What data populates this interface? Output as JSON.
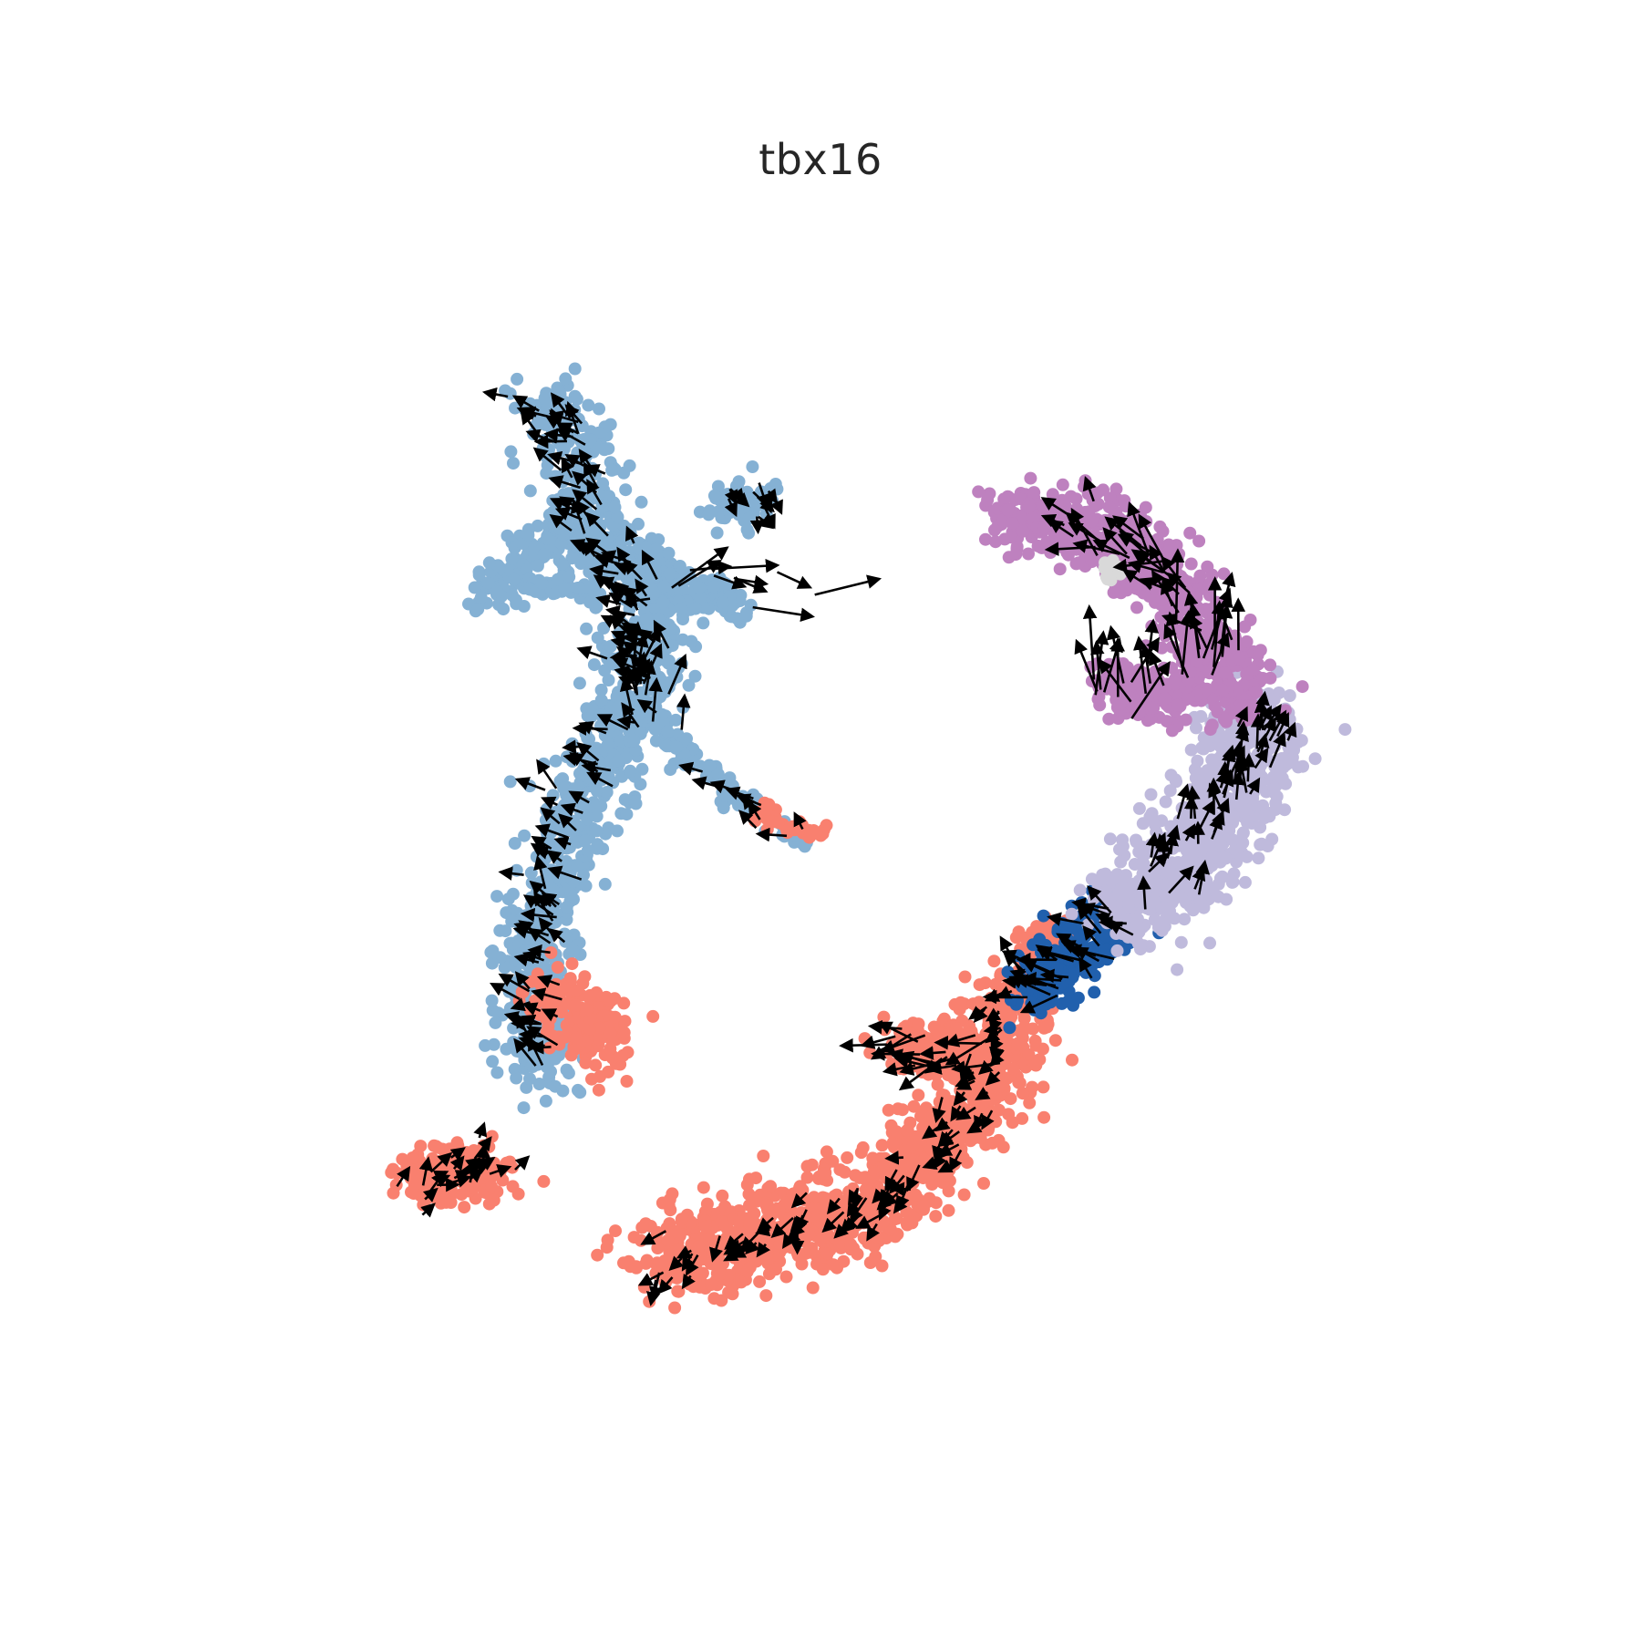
{
  "chart_data": {
    "type": "scatter",
    "title": "tbx16",
    "xlabel": "",
    "ylabel": "",
    "xlim": [
      0,
      1
    ],
    "ylim": [
      0,
      1
    ],
    "axes_visible": false,
    "grid": false,
    "legend": "none",
    "overlay": "velocity-arrows",
    "colors": {
      "light_blue": "#85b1d4",
      "salmon": "#f9806f",
      "purple": "#be81bf",
      "lavender": "#bfbadc",
      "dark_blue": "#2160ad",
      "gray": "#d9d9d9",
      "arrow": "#000000"
    },
    "series": [
      {
        "color": "#85b1d4",
        "clusters": [
          {
            "path": [
              [
                0.265,
                0.839
              ],
              [
                0.29,
                0.837
              ],
              [
                0.3,
                0.812
              ],
              [
                0.305,
                0.776
              ],
              [
                0.312,
                0.745
              ],
              [
                0.33,
                0.72
              ],
              [
                0.35,
                0.7
              ],
              [
                0.36,
                0.668
              ],
              [
                0.35,
                0.62
              ],
              [
                0.335,
                0.595
              ],
              [
                0.325,
                0.56
              ],
              [
                0.3,
                0.535
              ],
              [
                0.287,
                0.5
              ],
              [
                0.282,
                0.465
              ],
              [
                0.268,
                0.43
              ],
              [
                0.26,
                0.39
              ],
              [
                0.265,
                0.35
              ],
              [
                0.275,
                0.32
              ]
            ],
            "spread": 0.016,
            "n": 1100
          },
          {
            "path": [
              [
                0.3,
                0.745
              ],
              [
                0.27,
                0.732
              ],
              [
                0.245,
                0.712
              ],
              [
                0.222,
                0.693
              ]
            ],
            "spread": 0.009,
            "n": 160
          },
          {
            "path": [
              [
                0.257,
                0.7
              ],
              [
                0.285,
                0.703
              ],
              [
                0.31,
                0.7
              ]
            ],
            "spread": 0.004,
            "n": 50
          },
          {
            "path": [
              [
                0.34,
                0.715
              ],
              [
                0.375,
                0.705
              ],
              [
                0.41,
                0.695
              ],
              [
                0.43,
                0.69
              ]
            ],
            "spread": 0.009,
            "n": 180
          },
          {
            "path": [
              [
                0.35,
                0.605
              ],
              [
                0.385,
                0.572
              ],
              [
                0.42,
                0.545
              ],
              [
                0.455,
                0.52
              ],
              [
                0.48,
                0.505
              ]
            ],
            "spread": 0.005,
            "n": 120
          },
          {
            "path": [
              [
                0.415,
                0.773
              ],
              [
                0.45,
                0.762
              ]
            ],
            "spread": 0.01,
            "n": 70
          }
        ]
      },
      {
        "color": "#f9806f",
        "clusters": [
          {
            "path": [
              [
                0.28,
                0.375
              ],
              [
                0.31,
                0.36
              ],
              [
                0.315,
                0.335
              ]
            ],
            "spread": 0.014,
            "n": 180
          },
          {
            "path": [
              [
                0.16,
                0.23
              ],
              [
                0.195,
                0.24
              ],
              [
                0.235,
                0.24
              ]
            ],
            "spread": 0.012,
            "n": 160
          },
          {
            "path": [
              [
                0.36,
                0.17
              ],
              [
                0.42,
                0.186
              ],
              [
                0.48,
                0.2
              ],
              [
                0.54,
                0.215
              ],
              [
                0.585,
                0.25
              ],
              [
                0.62,
                0.3
              ],
              [
                0.64,
                0.34
              ],
              [
                0.66,
                0.385
              ]
            ],
            "spread": 0.018,
            "n": 1100
          },
          {
            "path": [
              [
                0.555,
                0.34
              ],
              [
                0.6,
                0.337
              ],
              [
                0.64,
                0.33
              ]
            ],
            "spread": 0.01,
            "n": 160
          },
          {
            "path": [
              [
                0.445,
                0.527
              ],
              [
                0.47,
                0.513
              ],
              [
                0.495,
                0.505
              ]
            ],
            "spread": 0.004,
            "n": 45
          },
          {
            "path": [
              [
                0.665,
                0.42
              ],
              [
                0.7,
                0.435
              ]
            ],
            "spread": 0.008,
            "n": 60
          }
        ]
      },
      {
        "color": "#2160ad",
        "clusters": [
          {
            "path": [
              [
                0.67,
                0.38
              ],
              [
                0.69,
                0.4
              ],
              [
                0.715,
                0.425
              ],
              [
                0.74,
                0.44
              ]
            ],
            "spread": 0.013,
            "n": 240
          }
        ]
      },
      {
        "color": "#bfbadc",
        "clusters": [
          {
            "path": [
              [
                0.74,
                0.445
              ],
              [
                0.775,
                0.47
              ],
              [
                0.8,
                0.495
              ],
              [
                0.825,
                0.53
              ],
              [
                0.845,
                0.57
              ],
              [
                0.855,
                0.605
              ]
            ],
            "spread": 0.02,
            "n": 800
          }
        ]
      },
      {
        "color": "#be81bf",
        "clusters": [
          {
            "path": [
              [
                0.65,
                0.755
              ],
              [
                0.7,
                0.755
              ],
              [
                0.745,
                0.735
              ],
              [
                0.78,
                0.705
              ],
              [
                0.8,
                0.675
              ],
              [
                0.825,
                0.64
              ],
              [
                0.845,
                0.615
              ]
            ],
            "spread": 0.014,
            "n": 700
          },
          {
            "path": [
              [
                0.73,
                0.625
              ],
              [
                0.77,
                0.615
              ],
              [
                0.805,
                0.62
              ]
            ],
            "spread": 0.012,
            "n": 220
          }
        ]
      },
      {
        "color": "#d9d9d9",
        "clusters": [
          {
            "path": [
              [
                0.725,
                0.716
              ],
              [
                0.735,
                0.712
              ]
            ],
            "spread": 0.004,
            "n": 14
          }
        ]
      }
    ],
    "arrow_regions": [
      {
        "path": [
          [
            0.265,
            0.839
          ],
          [
            0.3,
            0.812
          ],
          [
            0.312,
            0.745
          ],
          [
            0.35,
            0.7
          ],
          [
            0.335,
            0.595
          ],
          [
            0.3,
            0.535
          ],
          [
            0.282,
            0.465
          ],
          [
            0.26,
            0.39
          ],
          [
            0.275,
            0.32
          ]
        ],
        "dir": [
          -0.75,
          0.45
        ],
        "len": 0.02,
        "n": 140
      },
      {
        "path": [
          [
            0.39,
            0.705
          ],
          [
            0.44,
            0.712
          ],
          [
            0.48,
            0.705
          ]
        ],
        "dir": [
          1.0,
          0.18
        ],
        "len": 0.04,
        "n": 10
      },
      {
        "path": [
          [
            0.345,
            0.635
          ],
          [
            0.36,
            0.6
          ]
        ],
        "dir": [
          0.05,
          1.0
        ],
        "len": 0.026,
        "n": 14
      },
      {
        "path": [
          [
            0.42,
            0.545
          ],
          [
            0.48,
            0.505
          ]
        ],
        "dir": [
          -0.85,
          0.5
        ],
        "len": 0.018,
        "n": 10
      },
      {
        "path": [
          [
            0.42,
            0.78
          ],
          [
            0.46,
            0.77
          ]
        ],
        "dir": [
          0.55,
          -0.8
        ],
        "len": 0.016,
        "n": 12
      },
      {
        "path": [
          [
            0.16,
            0.23
          ],
          [
            0.235,
            0.245
          ]
        ],
        "dir": [
          0.7,
          0.6
        ],
        "len": 0.016,
        "n": 24
      },
      {
        "path": [
          [
            0.36,
            0.165
          ],
          [
            0.48,
            0.2
          ],
          [
            0.545,
            0.215
          ],
          [
            0.6,
            0.26
          ],
          [
            0.62,
            0.3
          ],
          [
            0.65,
            0.38
          ]
        ],
        "dir": [
          -0.7,
          -0.7
        ],
        "len": 0.016,
        "n": 90
      },
      {
        "path": [
          [
            0.555,
            0.34
          ],
          [
            0.64,
            0.33
          ]
        ],
        "dir": [
          -1.0,
          0.0
        ],
        "len": 0.03,
        "n": 20
      },
      {
        "path": [
          [
            0.67,
            0.38
          ],
          [
            0.7,
            0.405
          ],
          [
            0.74,
            0.44
          ]
        ],
        "dir": [
          -0.9,
          0.4
        ],
        "len": 0.03,
        "n": 30
      },
      {
        "path": [
          [
            0.75,
            0.46
          ],
          [
            0.8,
            0.5
          ],
          [
            0.84,
            0.56
          ],
          [
            0.86,
            0.6
          ]
        ],
        "dir": [
          0.3,
          0.95
        ],
        "len": 0.022,
        "n": 50
      },
      {
        "path": [
          [
            0.72,
            0.61
          ],
          [
            0.76,
            0.625
          ],
          [
            0.8,
            0.65
          ],
          [
            0.83,
            0.64
          ]
        ],
        "dir": [
          0.05,
          1.0
        ],
        "len": 0.045,
        "n": 30
      },
      {
        "path": [
          [
            0.7,
            0.75
          ],
          [
            0.745,
            0.735
          ],
          [
            0.78,
            0.705
          ],
          [
            0.8,
            0.675
          ]
        ],
        "dir": [
          -0.8,
          0.55
        ],
        "len": 0.03,
        "n": 30
      }
    ]
  }
}
